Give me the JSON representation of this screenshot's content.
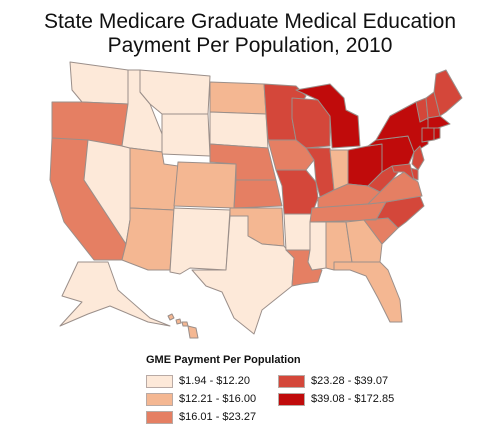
{
  "title_line1": "State Medicare Graduate Medical Education",
  "title_line2": "Payment Per Population, 2010",
  "legend": {
    "title": "GME Payment Per Population",
    "bins": [
      {
        "label": "$1.94 - $12.20",
        "color": "#fde9d9"
      },
      {
        "label": "$12.21 - $16.00",
        "color": "#f4b792"
      },
      {
        "label": "$16.01 - $23.27",
        "color": "#e57f63"
      },
      {
        "label": "$23.28 - $39.07",
        "color": "#d4473a"
      },
      {
        "label": "$39.08 - $172.85",
        "color": "#c00b0b"
      }
    ]
  },
  "states": {
    "WA": 0,
    "OR": 2,
    "CA": 2,
    "NV": 0,
    "ID": 0,
    "MT": 0,
    "WY": 0,
    "UT": 1,
    "AZ": 1,
    "CO": 1,
    "NM": 0,
    "ND": 1,
    "SD": 0,
    "NE": 2,
    "KS": 2,
    "OK": 1,
    "TX": 0,
    "MN": 3,
    "IA": 2,
    "MO": 3,
    "AR": 0,
    "LA": 2,
    "WI": 3,
    "IL": 3,
    "MI": 4,
    "IN": 1,
    "OH": 4,
    "KY": 2,
    "TN": 2,
    "MS": 0,
    "AL": 1,
    "GA": 1,
    "FL": 1,
    "SC": 2,
    "NC": 3,
    "VA": 2,
    "WV": 3,
    "PA": 4,
    "NY": 4,
    "VT": 3,
    "NH": 3,
    "ME": 3,
    "MA": 4,
    "CT": 4,
    "RI": 4,
    "NJ": 3,
    "DE": 3,
    "MD": 3,
    "AK": 0,
    "HI": 1
  }
}
